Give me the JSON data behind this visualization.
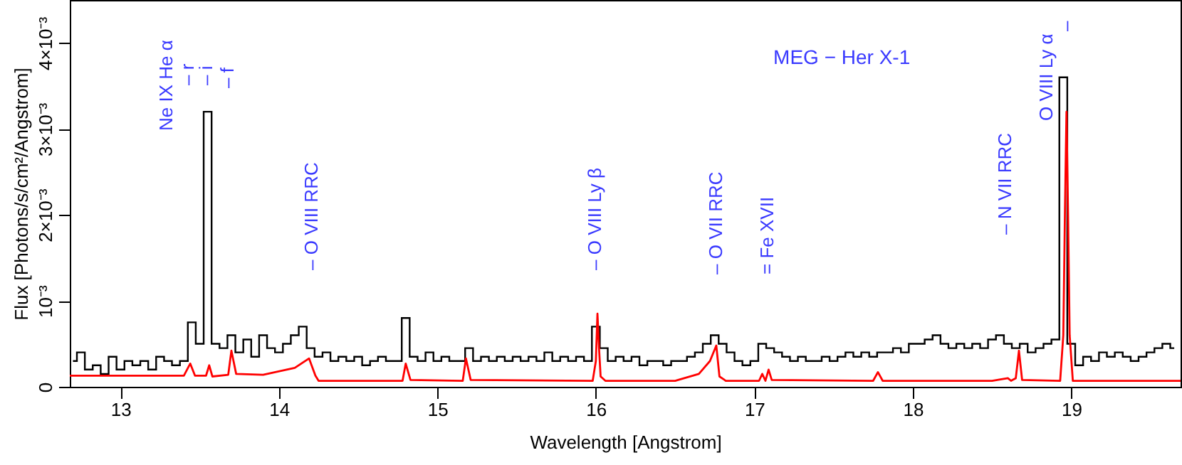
{
  "chart_data": {
    "type": "line",
    "title": "MEG − Her X-1",
    "xlabel": "Wavelength [Angstrom]",
    "ylabel": "Flux [Photons/s/cm²/Angstrom]",
    "xlim": [
      12.68,
      19.69
    ],
    "xticks": [
      13,
      14,
      15,
      16,
      17,
      18,
      19
    ],
    "ylim": [
      0,
      0.0045
    ],
    "yticks": [
      0,
      {
        "value": 0.001,
        "label": "10⁻³"
      },
      {
        "value": 0.002,
        "label": "2×10⁻³"
      },
      {
        "value": 0.003,
        "label": "3×10⁻³"
      },
      {
        "value": 0.004,
        "label": "4×10⁻³"
      }
    ],
    "grid": false,
    "legend": false,
    "marker": "none",
    "series": [
      {
        "type": "step",
        "color": "#000000",
        "x": [
          12.7,
          12.75,
          12.8,
          12.85,
          12.9,
          12.95,
          13.0,
          13.05,
          13.1,
          13.15,
          13.2,
          13.25,
          13.3,
          13.35,
          13.4,
          13.45,
          13.5,
          13.55,
          13.6,
          13.65,
          13.7,
          13.75,
          13.8,
          13.85,
          13.9,
          13.95,
          14.0,
          14.05,
          14.1,
          14.15,
          14.2,
          14.25,
          14.3,
          14.35,
          14.4,
          14.45,
          14.5,
          14.55,
          14.6,
          14.65,
          14.7,
          14.75,
          14.8,
          14.85,
          14.9,
          14.95,
          15.0,
          15.05,
          15.1,
          15.15,
          15.2,
          15.25,
          15.3,
          15.35,
          15.4,
          15.45,
          15.5,
          15.55,
          15.6,
          15.65,
          15.7,
          15.75,
          15.8,
          15.85,
          15.9,
          15.95,
          16.0,
          16.05,
          16.1,
          16.15,
          16.2,
          16.25,
          16.3,
          16.35,
          16.4,
          16.45,
          16.5,
          16.55,
          16.6,
          16.65,
          16.7,
          16.75,
          16.8,
          16.85,
          16.9,
          16.95,
          17.0,
          17.05,
          17.1,
          17.15,
          17.2,
          17.25,
          17.3,
          17.35,
          17.4,
          17.45,
          17.5,
          17.55,
          17.6,
          17.65,
          17.7,
          17.75,
          17.8,
          17.85,
          17.9,
          17.95,
          18.0,
          18.05,
          18.1,
          18.15,
          18.2,
          18.25,
          18.3,
          18.35,
          18.4,
          18.45,
          18.5,
          18.55,
          18.6,
          18.65,
          18.7,
          18.75,
          18.8,
          18.85,
          18.9,
          18.95,
          19.0,
          19.05,
          19.1,
          19.15,
          19.2,
          19.25,
          19.3,
          19.35,
          19.4,
          19.45,
          19.5,
          19.55,
          19.6,
          19.65
        ],
        "values": [
          0.0003,
          0.0004,
          0.0002,
          0.00025,
          0.00015,
          0.00035,
          0.0002,
          0.0003,
          0.00025,
          0.0003,
          0.0002,
          0.00035,
          0.0003,
          0.00025,
          0.0003,
          0.00075,
          0.0005,
          0.0032,
          0.0005,
          0.00045,
          0.0006,
          0.0004,
          0.00055,
          0.00035,
          0.0006,
          0.00045,
          0.0004,
          0.0005,
          0.0006,
          0.0007,
          0.00045,
          0.00035,
          0.0004,
          0.0003,
          0.00035,
          0.0003,
          0.00035,
          0.00025,
          0.0003,
          0.00035,
          0.0003,
          0.0003,
          0.0008,
          0.00035,
          0.0003,
          0.0004,
          0.0003,
          0.00035,
          0.0003,
          0.0003,
          0.00045,
          0.0003,
          0.00035,
          0.0003,
          0.00035,
          0.0003,
          0.00035,
          0.0003,
          0.00035,
          0.0003,
          0.0004,
          0.0003,
          0.00035,
          0.0003,
          0.00035,
          0.0003,
          0.0007,
          0.00045,
          0.0003,
          0.00035,
          0.0003,
          0.00035,
          0.00025,
          0.0003,
          0.0003,
          0.00025,
          0.0003,
          0.0003,
          0.00035,
          0.0004,
          0.0005,
          0.0006,
          0.0005,
          0.0004,
          0.0003,
          0.00025,
          0.0003,
          0.0005,
          0.00045,
          0.0004,
          0.00035,
          0.0003,
          0.00035,
          0.0003,
          0.0003,
          0.00035,
          0.0003,
          0.00035,
          0.0004,
          0.00035,
          0.0004,
          0.00035,
          0.0004,
          0.0004,
          0.00045,
          0.0004,
          0.0005,
          0.0005,
          0.00055,
          0.0006,
          0.0005,
          0.00045,
          0.0005,
          0.00045,
          0.0005,
          0.00045,
          0.00055,
          0.0006,
          0.0005,
          0.00045,
          0.0005,
          0.0004,
          0.00045,
          0.0005,
          0.00055,
          0.0036,
          0.0005,
          0.00025,
          0.00035,
          0.0003,
          0.0004,
          0.00035,
          0.0004,
          0.00035,
          0.0003,
          0.00035,
          0.0004,
          0.00045,
          0.0005,
          0.00045
        ]
      },
      {
        "color": "#ff0000",
        "x": [
          12.68,
          13.4,
          13.44,
          13.47,
          13.54,
          13.56,
          13.58,
          13.68,
          13.7,
          13.73,
          13.9,
          14.1,
          14.19,
          14.23,
          14.25,
          14.78,
          14.8,
          14.83,
          15.16,
          15.18,
          15.21,
          15.98,
          16.0,
          16.01,
          16.02,
          16.03,
          16.06,
          16.5,
          16.65,
          16.72,
          16.76,
          16.78,
          16.82,
          17.03,
          17.05,
          17.07,
          17.09,
          17.11,
          17.75,
          17.78,
          17.81,
          18.5,
          18.6,
          18.62,
          18.65,
          18.67,
          18.69,
          18.93,
          18.95,
          18.96,
          18.97,
          18.98,
          18.99,
          19.01,
          19.69
        ],
        "values": [
          0.00013,
          0.00013,
          0.00027,
          0.00013,
          0.00013,
          0.00025,
          0.00012,
          0.00014,
          0.00042,
          0.00015,
          0.00014,
          0.00022,
          0.00033,
          0.00013,
          7e-05,
          7e-05,
          0.00027,
          8e-05,
          7e-05,
          0.00033,
          8e-05,
          7e-05,
          0.0003,
          0.00085,
          0.00045,
          0.00012,
          7e-05,
          7e-05,
          0.00015,
          0.0003,
          0.00048,
          0.00012,
          7e-05,
          7e-05,
          0.00015,
          7e-05,
          0.0002,
          8e-05,
          7e-05,
          0.00017,
          7e-05,
          7e-05,
          0.0001,
          7e-05,
          0.0001,
          0.00042,
          8e-05,
          7e-05,
          0.0006,
          0.002,
          0.0032,
          0.002,
          0.0006,
          7e-05,
          7e-05
        ]
      }
    ],
    "annotations": [
      "Ne IX He α",
      "– r",
      "– i",
      "– f",
      "– O VIII RRC",
      "– O VIII Ly β",
      "– O VII RRC",
      "= Fe XVII",
      "– N VII RRC",
      "O VIII Ly α",
      "–"
    ]
  }
}
